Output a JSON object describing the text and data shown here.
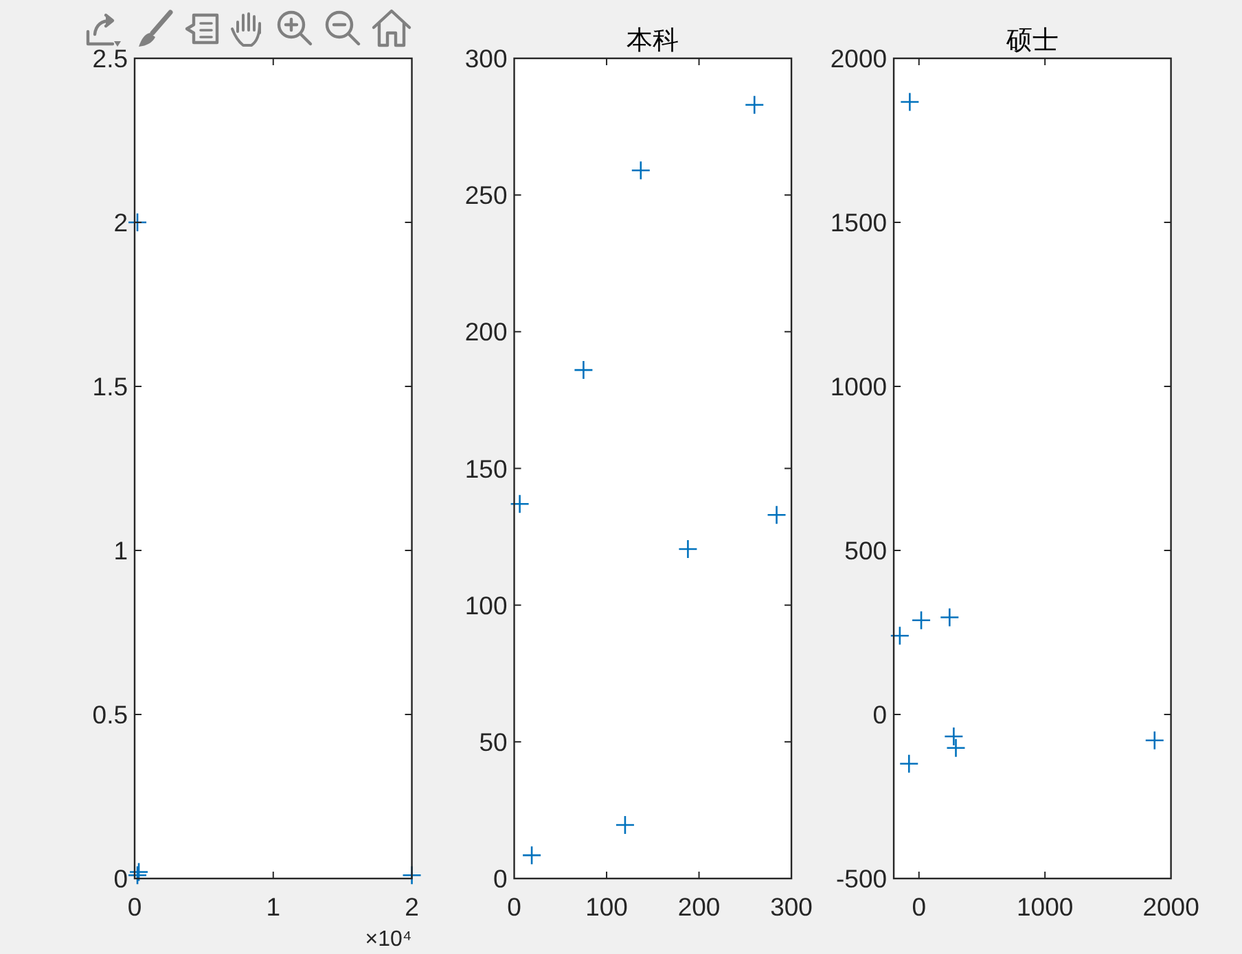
{
  "chart_data": [
    {
      "type": "scatter",
      "marker": "cross",
      "xlim": [
        0,
        2
      ],
      "xticks": [
        0,
        1,
        2
      ],
      "ylim": [
        0,
        2.5
      ],
      "yticks": [
        0,
        0.5,
        1,
        1.5,
        2,
        2.5
      ],
      "annotations": [
        "×10⁴"
      ],
      "series": [
        {
          "color": "#0072bd",
          "x": [
            0.02,
            0.02,
            0.03,
            2
          ],
          "values": [
            2,
            0.01,
            0.02,
            0.01
          ]
        }
      ]
    },
    {
      "type": "scatter",
      "marker": "cross",
      "title": "本科",
      "xlim": [
        0,
        300
      ],
      "xticks": [
        0,
        100,
        200,
        300
      ],
      "ylim": [
        0,
        300
      ],
      "yticks": [
        0,
        50,
        100,
        150,
        200,
        250,
        300
      ],
      "series": [
        {
          "color": "#0072bd",
          "x": [
            6,
            19,
            75,
            120,
            137,
            188,
            260,
            284
          ],
          "values": [
            137,
            8.5,
            186,
            19.6,
            259,
            120.5,
            283,
            133
          ]
        }
      ]
    },
    {
      "type": "scatter",
      "marker": "cross",
      "title": "硕士",
      "xlim": [
        -200,
        2000
      ],
      "xticks": [
        0,
        1000,
        2000
      ],
      "ylim": [
        -500,
        2000
      ],
      "yticks": [
        -500,
        0,
        500,
        1000,
        1500,
        2000
      ],
      "series": [
        {
          "color": "#0072bd",
          "x": [
            -152,
            18,
            243,
            -79,
            276,
            293,
            1870,
            -73
          ],
          "values": [
            240,
            287,
            296,
            -150,
            -67,
            -102,
            -79,
            1867
          ]
        }
      ]
    }
  ]
}
